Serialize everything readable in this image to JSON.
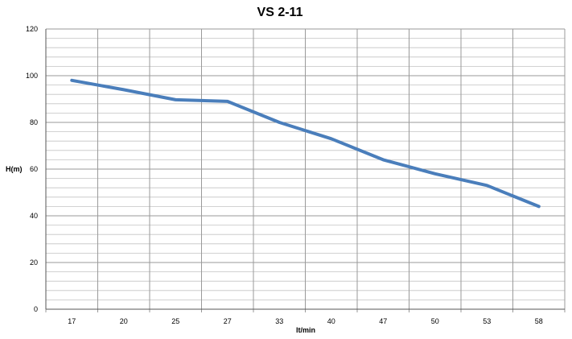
{
  "chart_data": {
    "type": "line",
    "title": "VS 2-11",
    "xlabel": "lt/min",
    "ylabel": "H(m)",
    "categories": [
      "17",
      "20",
      "25",
      "27",
      "33",
      "40",
      "47",
      "50",
      "53",
      "58"
    ],
    "series": [
      {
        "values": [
          98,
          94,
          89.7,
          89,
          80,
          73,
          64,
          58,
          53,
          44
        ]
      }
    ],
    "ylim": [
      0,
      120
    ],
    "yticks": [
      0,
      20,
      40,
      60,
      80,
      100,
      120
    ],
    "y_minor_step": 4,
    "grid": true,
    "legend": "none",
    "line_color": "#4a7ebb",
    "grid_color": "#9a9a9a"
  }
}
